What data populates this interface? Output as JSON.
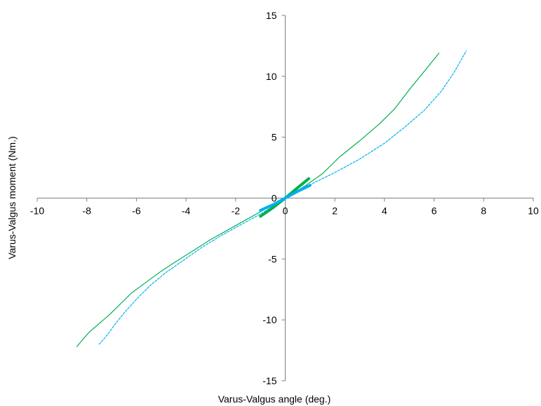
{
  "chart_data": {
    "type": "line",
    "title": "",
    "xlabel": "Varus-Valgus angle (deg.)",
    "ylabel": "Varus-Valgus moment (Nm.)",
    "xlim": [
      -10,
      10
    ],
    "ylim": [
      -15,
      15
    ],
    "x_ticks": [
      -10,
      -8,
      -6,
      -4,
      -2,
      0,
      2,
      4,
      6,
      8,
      10
    ],
    "y_ticks": [
      -15,
      -10,
      -5,
      0,
      5,
      10,
      15
    ],
    "x_tick_labels": [
      "-10",
      "-8",
      "-6",
      "-4",
      "-2",
      "0",
      "2",
      "4",
      "6",
      "8",
      "10"
    ],
    "y_tick_labels": [
      "-15",
      "-10",
      "-5",
      "0",
      "5",
      "10",
      "15"
    ],
    "grid": false,
    "legend": "none",
    "series": [
      {
        "style": "solid-thin",
        "color": "#00B050",
        "points": [
          [
            -8.4,
            -12.2
          ],
          [
            -8.2,
            -11.7
          ],
          [
            -7.9,
            -11.0
          ],
          [
            -7.5,
            -10.3
          ],
          [
            -7.1,
            -9.6
          ],
          [
            -6.7,
            -8.8
          ],
          [
            -6.2,
            -7.8
          ],
          [
            -5.6,
            -6.9
          ],
          [
            -5.0,
            -6.0
          ],
          [
            -4.4,
            -5.2
          ],
          [
            -3.7,
            -4.3
          ],
          [
            -3.0,
            -3.4
          ],
          [
            -2.3,
            -2.6
          ],
          [
            -1.6,
            -1.8
          ],
          [
            -0.8,
            -0.9
          ],
          [
            0,
            0
          ],
          [
            0.8,
            1.0
          ],
          [
            1.5,
            2.0
          ],
          [
            2.2,
            3.4
          ],
          [
            3.0,
            4.7
          ],
          [
            3.8,
            6.1
          ],
          [
            4.4,
            7.3
          ],
          [
            5.0,
            8.9
          ],
          [
            5.6,
            10.4
          ],
          [
            6.2,
            11.9
          ]
        ]
      },
      {
        "style": "dashed-thin",
        "color": "#00B0F0",
        "points": [
          [
            -7.5,
            -12.0
          ],
          [
            -7.2,
            -11.3
          ],
          [
            -6.8,
            -10.2
          ],
          [
            -6.4,
            -9.2
          ],
          [
            -5.9,
            -8.1
          ],
          [
            -5.4,
            -7.1
          ],
          [
            -4.8,
            -6.1
          ],
          [
            -4.1,
            -5.1
          ],
          [
            -3.4,
            -4.1
          ],
          [
            -2.6,
            -3.1
          ],
          [
            -1.8,
            -2.2
          ],
          [
            -0.9,
            -1.2
          ],
          [
            0,
            0
          ],
          [
            1.0,
            1.1
          ],
          [
            2.0,
            2.1
          ],
          [
            3.0,
            3.2
          ],
          [
            4.0,
            4.5
          ],
          [
            4.8,
            5.8
          ],
          [
            5.6,
            7.2
          ],
          [
            6.3,
            8.8
          ],
          [
            6.8,
            10.3
          ],
          [
            7.3,
            12.1
          ]
        ]
      },
      {
        "style": "solid-thick",
        "color": "#00B050",
        "points": [
          [
            -1.0,
            -1.5
          ],
          [
            -0.5,
            -0.8
          ],
          [
            0,
            0
          ],
          [
            0.5,
            0.85
          ],
          [
            0.95,
            1.6
          ]
        ]
      },
      {
        "style": "solid-thick",
        "color": "#00B0F0",
        "points": [
          [
            -1.0,
            -1.0
          ],
          [
            -0.5,
            -0.55
          ],
          [
            0,
            0
          ],
          [
            0.5,
            0.55
          ],
          [
            1.0,
            1.05
          ]
        ]
      }
    ]
  }
}
